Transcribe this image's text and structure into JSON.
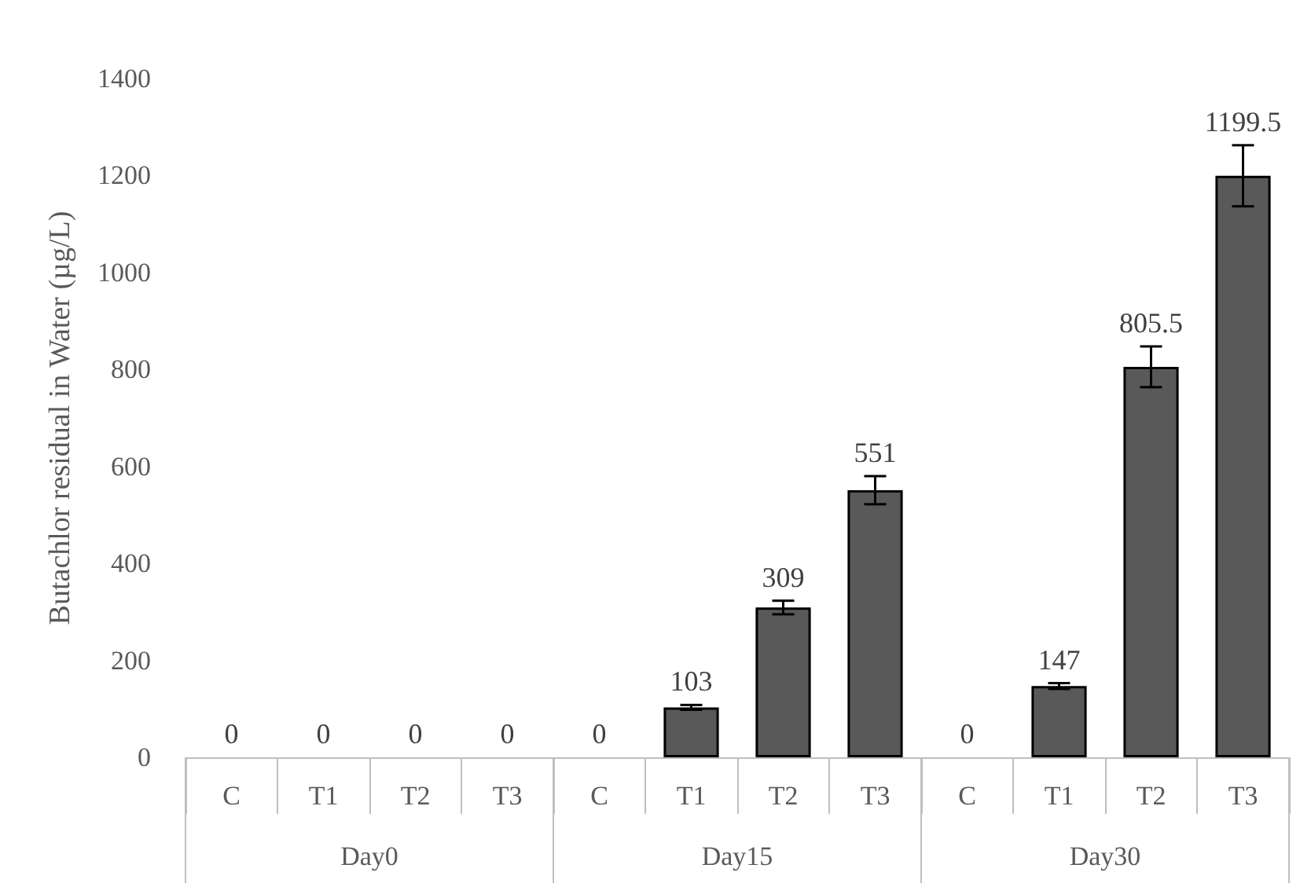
{
  "chart_data": {
    "type": "bar",
    "ylabel": "Butachlor residual in Water (µg/L)",
    "categories": [
      "C",
      "T1",
      "T2",
      "T3",
      "C",
      "T1",
      "T2",
      "T3",
      "C",
      "T1",
      "T2",
      "T3"
    ],
    "annotations": [
      "Day0",
      "Day15",
      "Day30"
    ],
    "values": [
      0,
      0,
      0,
      0,
      0,
      103,
      309,
      551,
      0,
      147,
      805.5,
      1199.5
    ],
    "errors": [
      null,
      null,
      null,
      null,
      null,
      5,
      14,
      29,
      null,
      6,
      42,
      63
    ],
    "color": "#595959",
    "ylim": [
      0,
      1400
    ],
    "yticks": [
      0,
      200,
      400,
      600,
      800,
      1000,
      1200,
      1400
    ],
    "data_labels": true,
    "grid": false
  }
}
